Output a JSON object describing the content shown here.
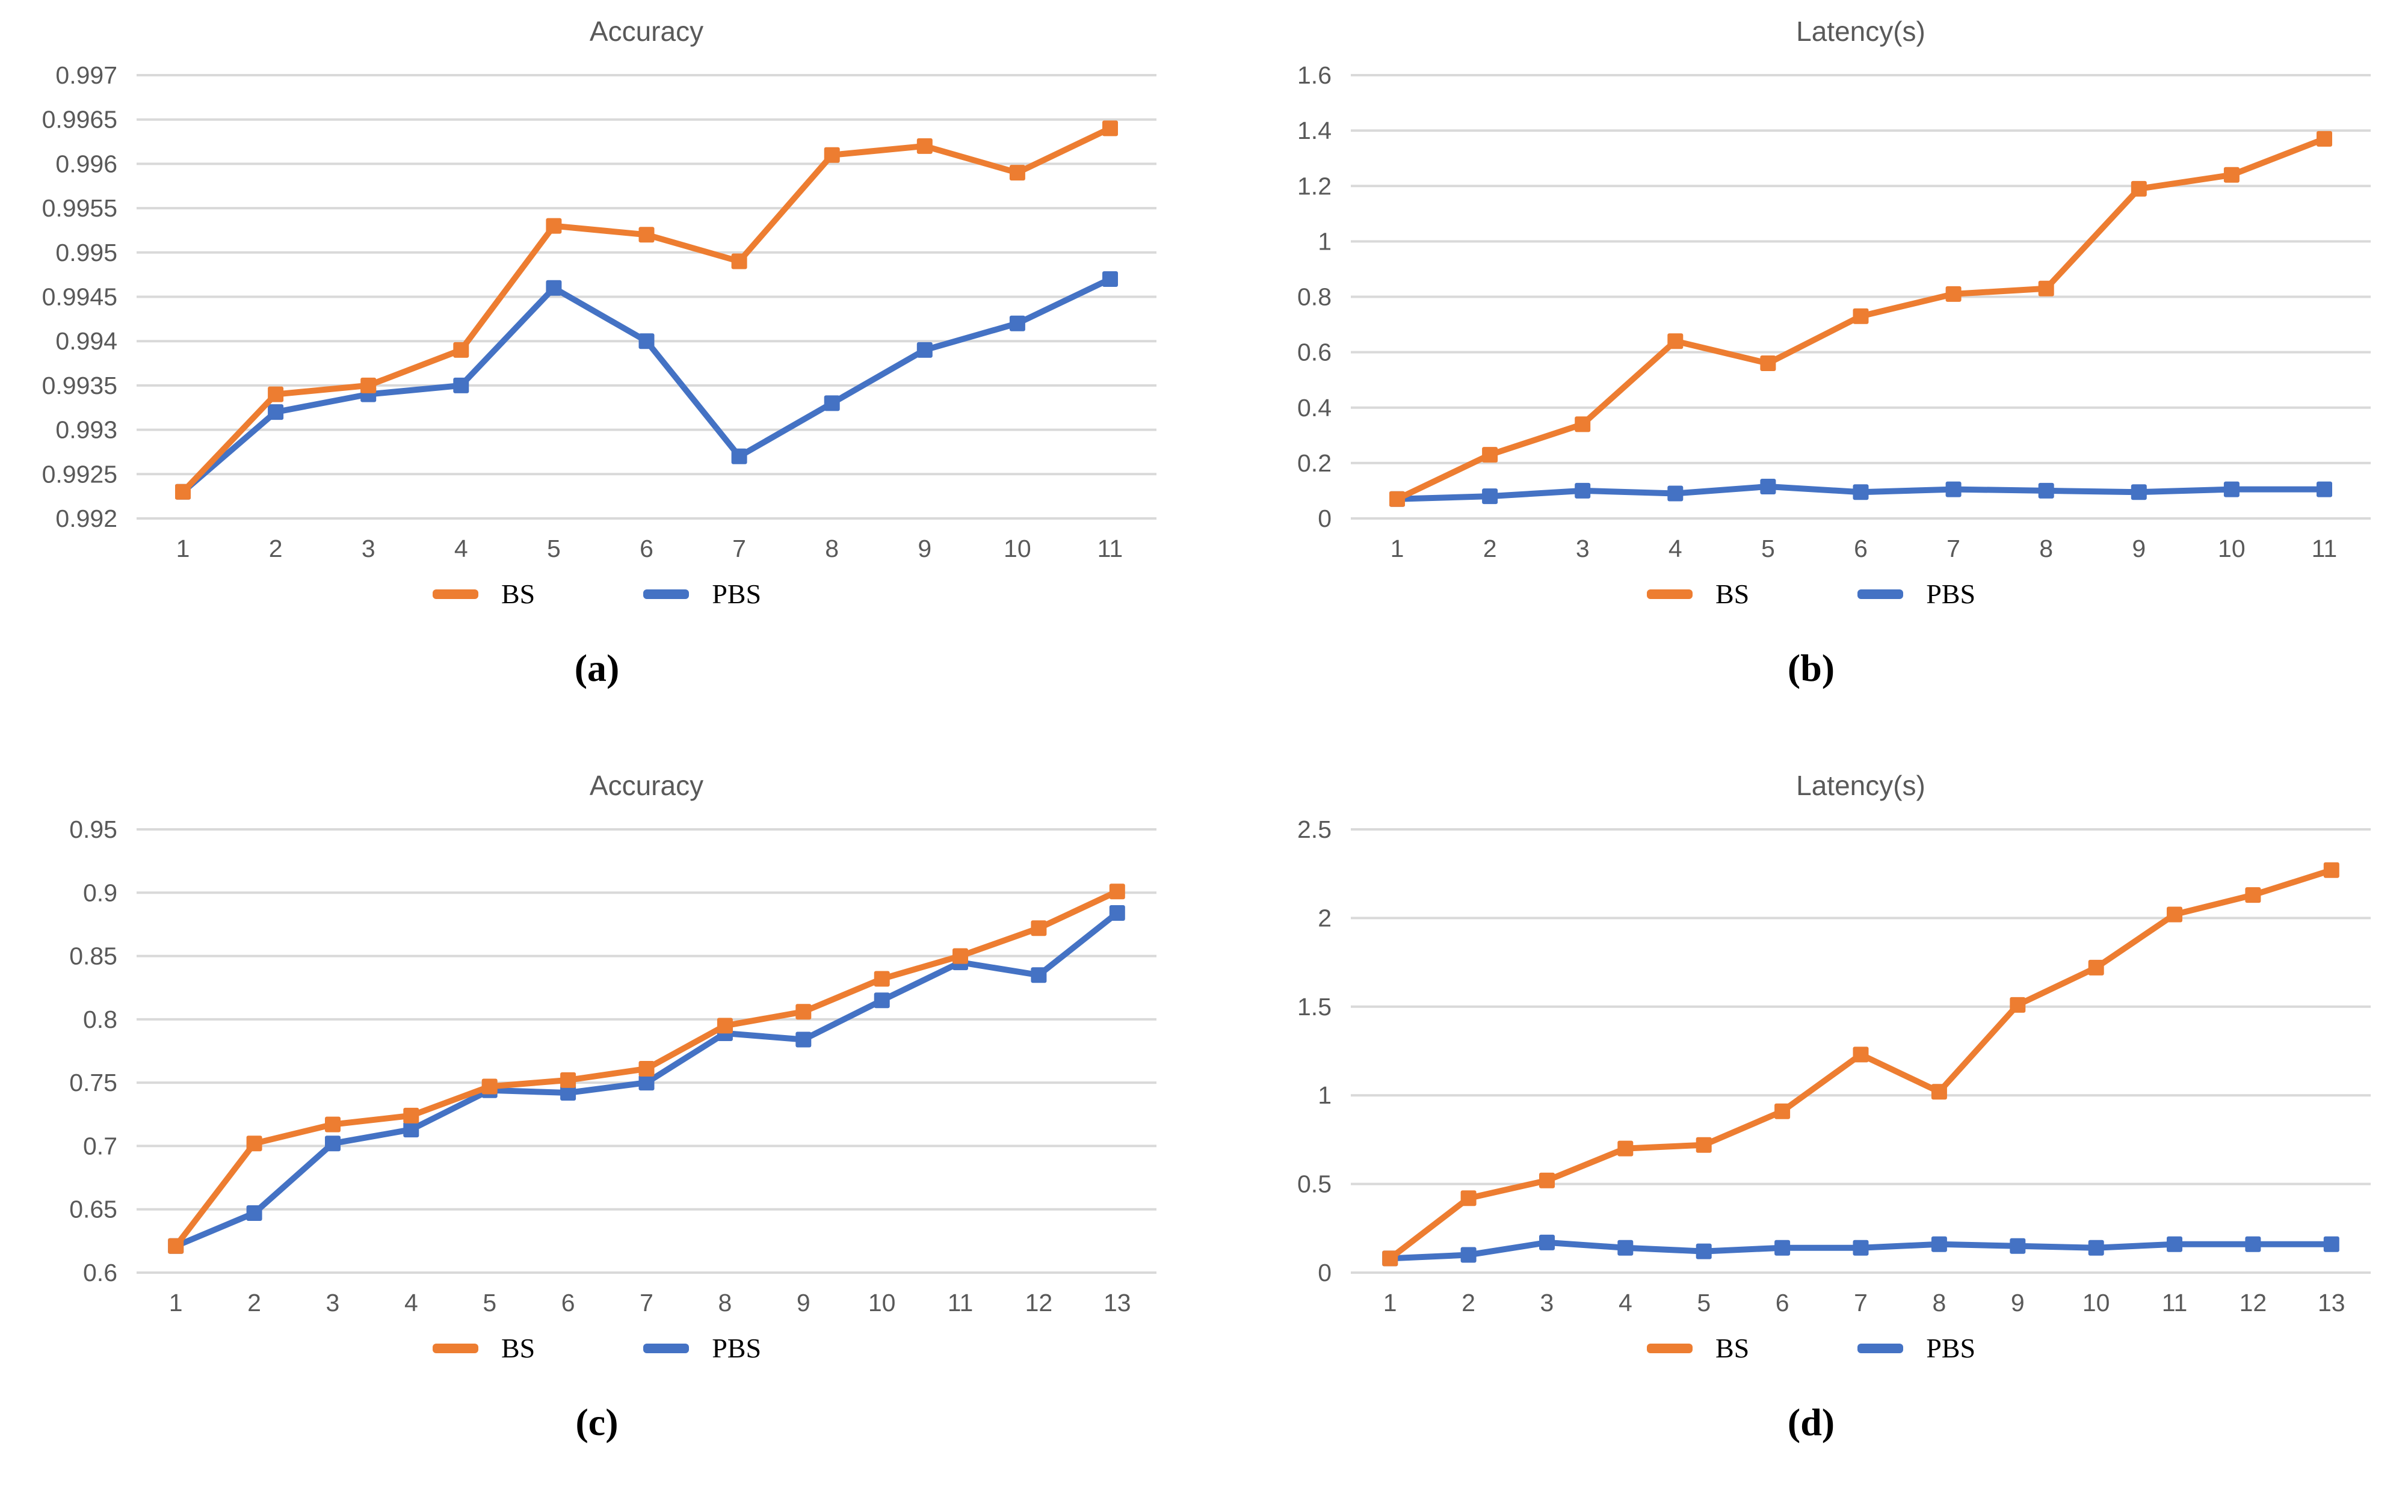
{
  "page": {
    "background": "#ffffff"
  },
  "palette": {
    "bs": "#ED7D31",
    "pbs": "#4472C4",
    "grid": "#D9D9D9",
    "axis_text": "#595959",
    "title_text": "#595959",
    "legend_text": "#000000"
  },
  "chart_data": [
    {
      "type": "line",
      "title": "Accuracy",
      "caption": "(a)",
      "categories": [
        "1",
        "2",
        "3",
        "4",
        "5",
        "6",
        "7",
        "8",
        "9",
        "10",
        "11"
      ],
      "xlabel": "",
      "ylabel": "",
      "ylim": [
        0.992,
        0.997
      ],
      "yticks": [
        "0.997",
        "0.9965",
        "0.996",
        "0.9955",
        "0.995",
        "0.9945",
        "0.994",
        "0.9935",
        "0.993",
        "0.9925",
        "0.992"
      ],
      "grid": true,
      "legend_position": "bottom",
      "series": [
        {
          "name": "BS",
          "color": "#ED7D31",
          "values": [
            0.9923,
            0.9934,
            0.9935,
            0.9939,
            0.9953,
            0.9952,
            0.9949,
            0.9961,
            0.9962,
            0.9959,
            0.9964
          ]
        },
        {
          "name": "PBS",
          "color": "#4472C4",
          "values": [
            0.9923,
            0.9932,
            0.9934,
            0.9935,
            0.9946,
            0.994,
            0.9927,
            0.9933,
            0.9939,
            0.9942,
            0.9947
          ]
        }
      ]
    },
    {
      "type": "line",
      "title": "Latency(s)",
      "caption": "(b)",
      "categories": [
        "1",
        "2",
        "3",
        "4",
        "5",
        "6",
        "7",
        "8",
        "9",
        "10",
        "11"
      ],
      "xlabel": "",
      "ylabel": "",
      "ylim": [
        0,
        1.6
      ],
      "yticks": [
        "1.6",
        "1.4",
        "1.2",
        "1",
        "0.8",
        "0.6",
        "0.4",
        "0.2",
        "0"
      ],
      "grid": true,
      "legend_position": "bottom",
      "series": [
        {
          "name": "BS",
          "color": "#ED7D31",
          "values": [
            0.07,
            0.23,
            0.34,
            0.64,
            0.56,
            0.73,
            0.81,
            0.83,
            1.19,
            1.24,
            1.37
          ]
        },
        {
          "name": "PBS",
          "color": "#4472C4",
          "values": [
            0.07,
            0.08,
            0.1,
            0.09,
            0.115,
            0.095,
            0.105,
            0.1,
            0.095,
            0.105,
            0.105
          ]
        }
      ]
    },
    {
      "type": "line",
      "title": "Accuracy",
      "caption": "(c)",
      "categories": [
        "1",
        "2",
        "3",
        "4",
        "5",
        "6",
        "7",
        "8",
        "9",
        "10",
        "11",
        "12",
        "13"
      ],
      "xlabel": "",
      "ylabel": "",
      "ylim": [
        0.6,
        0.95
      ],
      "yticks": [
        "0.95",
        "0.9",
        "0.85",
        "0.8",
        "0.75",
        "0.7",
        "0.65",
        "0.6"
      ],
      "grid": true,
      "legend_position": "bottom",
      "series": [
        {
          "name": "BS",
          "color": "#ED7D31",
          "values": [
            0.621,
            0.702,
            0.717,
            0.724,
            0.747,
            0.752,
            0.761,
            0.795,
            0.806,
            0.832,
            0.85,
            0.872,
            0.901
          ]
        },
        {
          "name": "PBS",
          "color": "#4472C4",
          "values": [
            0.621,
            0.647,
            0.702,
            0.713,
            0.744,
            0.742,
            0.75,
            0.789,
            0.784,
            0.815,
            0.845,
            0.835,
            0.884
          ]
        }
      ]
    },
    {
      "type": "line",
      "title": "Latency(s)",
      "caption": "(d)",
      "categories": [
        "1",
        "2",
        "3",
        "4",
        "5",
        "6",
        "7",
        "8",
        "9",
        "10",
        "11",
        "12",
        "13"
      ],
      "xlabel": "",
      "ylabel": "",
      "ylim": [
        0,
        2.5
      ],
      "yticks": [
        "2.5",
        "2",
        "1.5",
        "1",
        "0.5",
        "0"
      ],
      "grid": true,
      "legend_position": "bottom",
      "series": [
        {
          "name": "BS",
          "color": "#ED7D31",
          "values": [
            0.08,
            0.42,
            0.52,
            0.7,
            0.72,
            0.91,
            1.23,
            1.02,
            1.51,
            1.72,
            2.02,
            2.13,
            2.27
          ]
        },
        {
          "name": "PBS",
          "color": "#4472C4",
          "values": [
            0.08,
            0.1,
            0.17,
            0.14,
            0.12,
            0.14,
            0.14,
            0.16,
            0.15,
            0.14,
            0.16,
            0.16,
            0.16
          ]
        }
      ]
    }
  ]
}
